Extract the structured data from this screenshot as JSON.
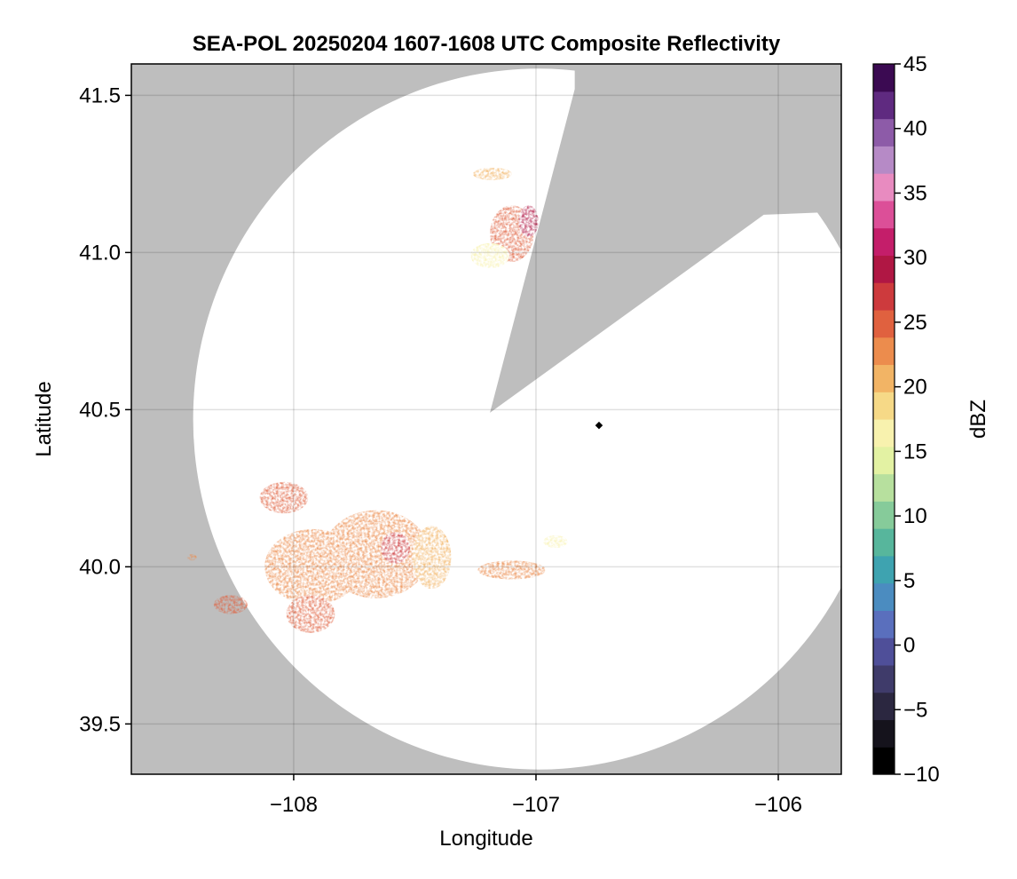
{
  "chart_data": {
    "type": "heatmap",
    "title": "SEA-POL 20250204 1607-1608 UTC Composite Reflectivity",
    "xlabel": "Longitude",
    "ylabel": "Latitude",
    "xlim": [
      -108.67,
      -105.74
    ],
    "ylim": [
      39.34,
      41.6
    ],
    "xticks": [
      -108,
      -107,
      -106
    ],
    "xtick_labels": [
      "−108",
      "−107",
      "−106"
    ],
    "yticks": [
      39.5,
      40.0,
      40.5,
      41.0,
      41.5
    ],
    "ytick_labels": [
      "39.5",
      "40.0",
      "40.5",
      "41.0",
      "41.5"
    ],
    "grid": true,
    "radar_site": {
      "lon": -106.74,
      "lat": 40.45
    },
    "coverage_circle": {
      "center_lon": -106.99,
      "center_lat": 40.47,
      "radius_lon": 1.425,
      "radius_lat": 1.115
    },
    "blocked_sector": [
      [
        -107.19,
        40.49
      ],
      [
        -106.84,
        41.52
      ],
      [
        -106.84,
        41.6
      ],
      [
        -105.74,
        41.6
      ],
      [
        -105.74,
        41.13
      ],
      [
        -106.06,
        41.12
      ]
    ],
    "no_data_color": "#bebebe",
    "colorbar": {
      "label": "dBZ",
      "vmin": -10,
      "vmax": 45,
      "ticks": [
        -10,
        -5,
        0,
        5,
        10,
        15,
        20,
        25,
        30,
        35,
        40,
        45
      ],
      "tick_labels": [
        "−10",
        "−5",
        "0",
        "5",
        "10",
        "15",
        "20",
        "25",
        "30",
        "35",
        "40",
        "45"
      ],
      "colors": [
        "#000000",
        "#15131c",
        "#2b2740",
        "#3f3b6a",
        "#4f4f99",
        "#5a6fbd",
        "#4b8cc0",
        "#3ea3b0",
        "#57b69c",
        "#86cb9a",
        "#b7e09e",
        "#e3f2a3",
        "#f8f2ae",
        "#f6d987",
        "#f2b465",
        "#ec8c4d",
        "#e0613f",
        "#cd3a3d",
        "#b01744",
        "#c41e6a",
        "#dc4f98",
        "#e88bc0",
        "#b68ac6",
        "#8d5ba8",
        "#5f2a80",
        "#3b0a52"
      ]
    },
    "echoes": [
      {
        "name": "north cell",
        "lon": -107.1,
        "lat": 41.06,
        "r_lon": 0.09,
        "r_lat": 0.09,
        "dbz": 24
      },
      {
        "name": "north cell core",
        "lon": -107.03,
        "lat": 41.1,
        "r_lon": 0.04,
        "r_lat": 0.05,
        "dbz": 29
      },
      {
        "name": "north cell fringe",
        "lon": -107.19,
        "lat": 40.99,
        "r_lon": 0.08,
        "r_lat": 0.04,
        "dbz": 16
      },
      {
        "name": "north streak",
        "lon": -107.18,
        "lat": 41.25,
        "r_lon": 0.08,
        "r_lat": 0.02,
        "dbz": 21
      },
      {
        "name": "southwest band",
        "lon": -108.04,
        "lat": 40.22,
        "r_lon": 0.1,
        "r_lat": 0.05,
        "dbz": 25
      },
      {
        "name": "main complex west",
        "lon": -107.92,
        "lat": 40.0,
        "r_lon": 0.2,
        "r_lat": 0.12,
        "dbz": 22
      },
      {
        "name": "main complex central",
        "lon": -107.66,
        "lat": 40.04,
        "r_lon": 0.22,
        "r_lat": 0.14,
        "dbz": 22
      },
      {
        "name": "main complex core",
        "lon": -107.58,
        "lat": 40.06,
        "r_lon": 0.06,
        "r_lat": 0.05,
        "dbz": 27
      },
      {
        "name": "main complex east",
        "lon": -107.43,
        "lat": 40.03,
        "r_lon": 0.08,
        "r_lat": 0.1,
        "dbz": 21
      },
      {
        "name": "southwest lobe",
        "lon": -107.93,
        "lat": 39.85,
        "r_lon": 0.1,
        "r_lat": 0.06,
        "dbz": 25
      },
      {
        "name": "west small cell",
        "lon": -108.26,
        "lat": 39.88,
        "r_lon": 0.07,
        "r_lat": 0.03,
        "dbz": 24
      },
      {
        "name": "east band",
        "lon": -107.1,
        "lat": 39.99,
        "r_lon": 0.14,
        "r_lat": 0.03,
        "dbz": 22
      },
      {
        "name": "east band tip",
        "lon": -106.92,
        "lat": 40.08,
        "r_lon": 0.05,
        "r_lat": 0.02,
        "dbz": 17
      },
      {
        "name": "far west speck",
        "lon": -108.42,
        "lat": 40.03,
        "r_lon": 0.02,
        "r_lat": 0.01,
        "dbz": 23
      }
    ]
  }
}
